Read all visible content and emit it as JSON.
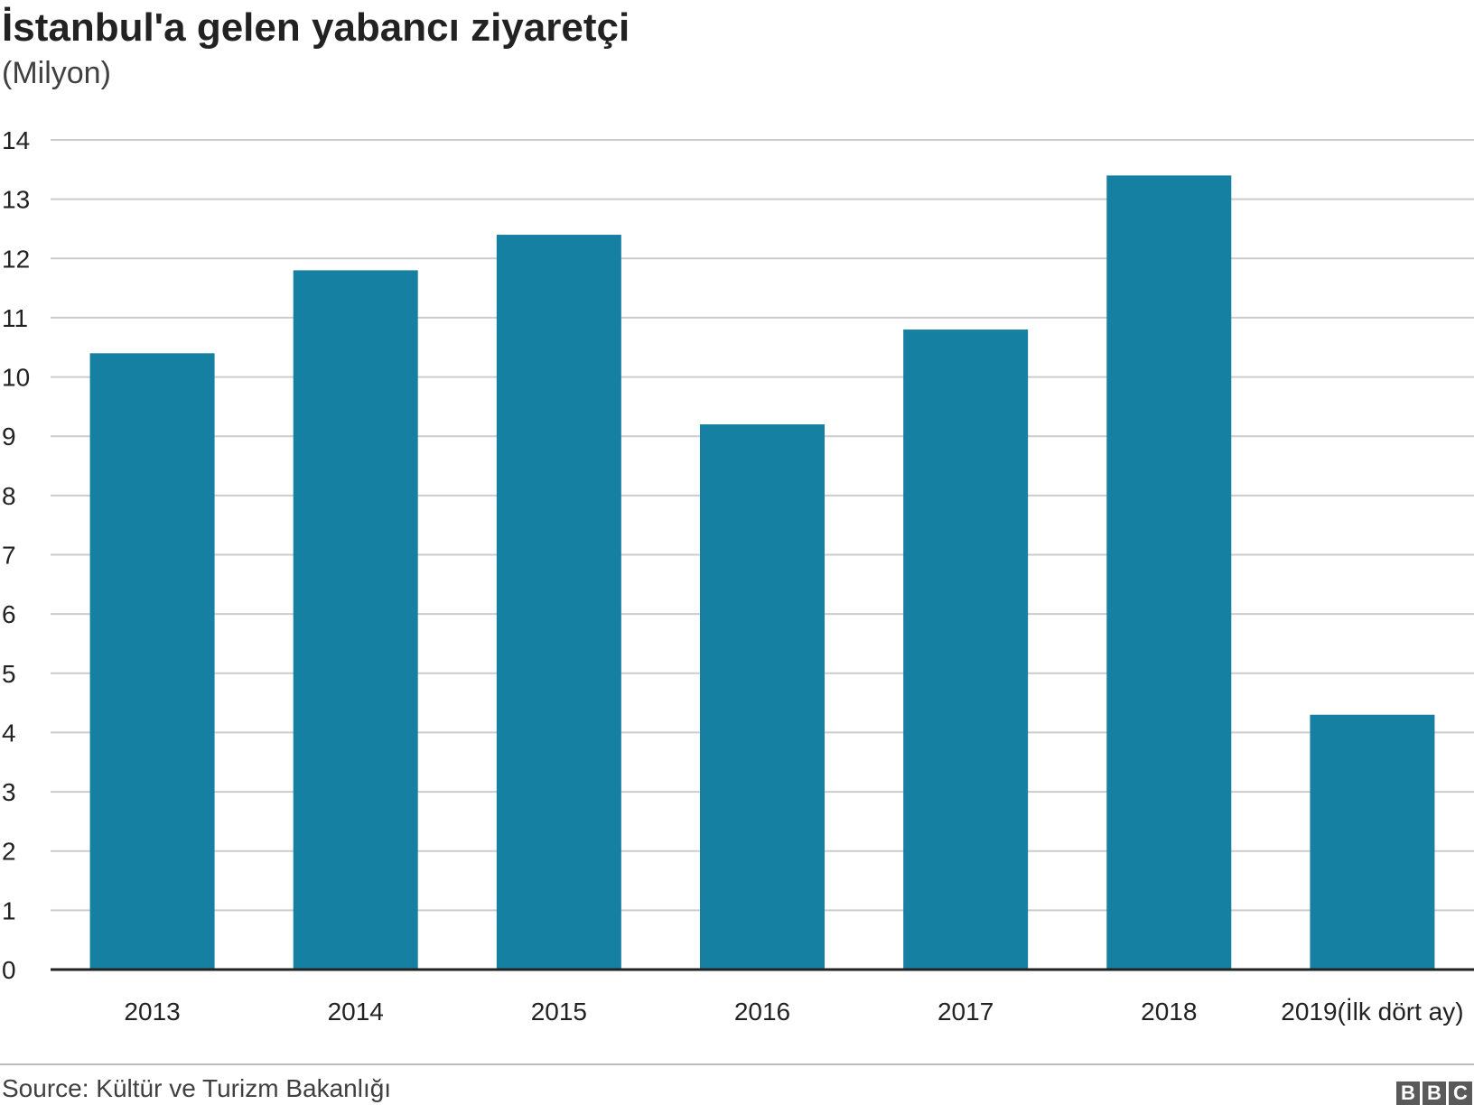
{
  "header": {
    "title": "İstanbul'a gelen yabancı ziyaretçi",
    "subtitle": "(Milyon)"
  },
  "footer": {
    "source": "Source: Kültür ve Turizm Bakanlığı",
    "logo": [
      "B",
      "B",
      "C"
    ]
  },
  "colors": {
    "bar": "#1580a2",
    "grid": "#cccccc",
    "axis": "#222222"
  },
  "chart_data": {
    "type": "bar",
    "title": "İstanbul'a gelen yabancı ziyaretçi",
    "subtitle": "(Milyon)",
    "xlabel": "",
    "ylabel": "",
    "categories": [
      "2013",
      "2014",
      "2015",
      "2016",
      "2017",
      "2018",
      "2019(İlk dört ay)"
    ],
    "values": [
      10.4,
      11.8,
      12.4,
      9.2,
      10.8,
      13.4,
      4.3
    ],
    "ylim": [
      0,
      14
    ],
    "yticks": [
      "0",
      "1",
      "2",
      "3",
      "4",
      "5",
      "6",
      "7",
      "8",
      "9",
      "10",
      "11",
      "12",
      "13",
      "14"
    ],
    "grid": true,
    "legend": "none",
    "source": "Source: Kültür ve Turizm Bakanlığı"
  }
}
